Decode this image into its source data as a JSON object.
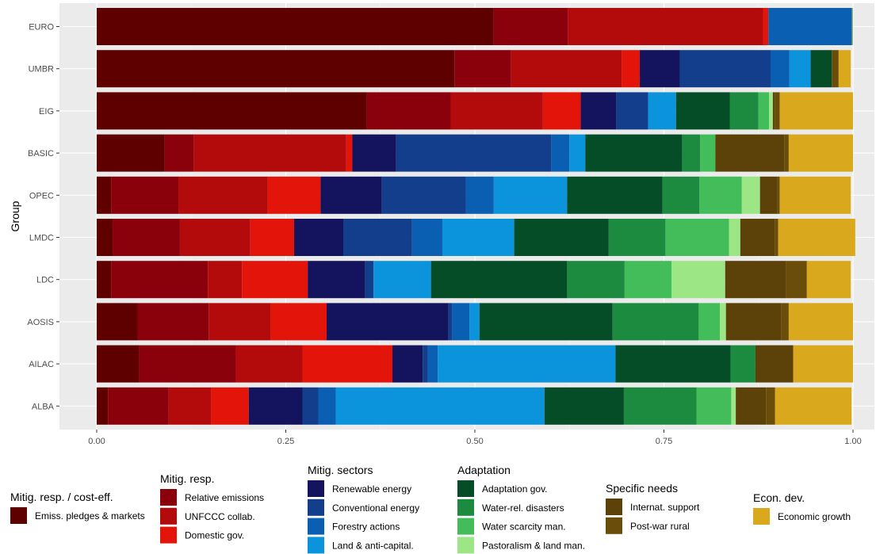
{
  "chart_data": {
    "type": "bar",
    "orientation": "horizontal",
    "stacked": true,
    "ylabel": "Group",
    "xlim": [
      0,
      1
    ],
    "xticks": [
      "0.00",
      "0.25",
      "0.50",
      "0.75",
      "1.00"
    ],
    "grid": true,
    "legend_position": "bottom",
    "categories": [
      "EURO",
      "UMBR",
      "EIG",
      "BASIC",
      "OPEC",
      "LMDC",
      "LDC",
      "AOSIS",
      "AILAC",
      "ALBA"
    ],
    "series": [
      {
        "name": "Emiss. pledges & markets",
        "color": "#5e0000",
        "values": [
          0.525,
          0.473,
          0.357,
          0.09,
          0.019,
          0.021,
          0.019,
          0.054,
          0.056,
          0.015
        ]
      },
      {
        "name": "Relative emissions",
        "color": "#8a000b",
        "values": [
          0.098,
          0.075,
          0.111,
          0.038,
          0.089,
          0.089,
          0.128,
          0.094,
          0.128,
          0.08
        ]
      },
      {
        "name": "UNFCCC collab.",
        "color": "#b30a0c",
        "values": [
          0.258,
          0.146,
          0.122,
          0.202,
          0.118,
          0.093,
          0.045,
          0.082,
          0.088,
          0.056
        ]
      },
      {
        "name": "Domestic gov.",
        "color": "#e3150a",
        "values": [
          0.007,
          0.024,
          0.05,
          0.008,
          0.07,
          0.058,
          0.087,
          0.074,
          0.119,
          0.05
        ]
      },
      {
        "name": "Renewable energy",
        "color": "#14145e",
        "values": [
          0.0,
          0.053,
          0.047,
          0.058,
          0.081,
          0.065,
          0.076,
          0.161,
          0.04,
          0.071
        ]
      },
      {
        "name": "Conventional energy",
        "color": "#123e8c",
        "values": [
          0.0,
          0.12,
          0.042,
          0.205,
          0.111,
          0.091,
          0.011,
          0.005,
          0.007,
          0.021
        ]
      },
      {
        "name": "Forestry actions",
        "color": "#0a5fb3",
        "values": [
          0.11,
          0.025,
          0.0,
          0.024,
          0.037,
          0.04,
          0.0,
          0.023,
          0.013,
          0.023
        ]
      },
      {
        "name": "Land & anti-capital.",
        "color": "#0b93dc",
        "values": [
          0.001,
          0.028,
          0.037,
          0.021,
          0.097,
          0.095,
          0.076,
          0.013,
          0.235,
          0.276
        ]
      },
      {
        "name": "Adaptation gov.",
        "color": "#054d26",
        "values": [
          0.0,
          0.028,
          0.071,
          0.128,
          0.126,
          0.125,
          0.18,
          0.176,
          0.152,
          0.105
        ]
      },
      {
        "name": "Water-rel. disasters",
        "color": "#1c8a3f",
        "values": [
          0.0,
          0.0,
          0.038,
          0.024,
          0.049,
          0.075,
          0.076,
          0.114,
          0.033,
          0.096
        ]
      },
      {
        "name": "Water scarcity man.",
        "color": "#43bd59",
        "values": [
          0.0,
          0.0,
          0.014,
          0.02,
          0.056,
          0.084,
          0.062,
          0.028,
          0.0,
          0.046
        ]
      },
      {
        "name": "Pastoralism & land man.",
        "color": "#9ce686",
        "values": [
          0.0,
          0.0,
          0.005,
          0.0,
          0.024,
          0.015,
          0.071,
          0.008,
          0.0,
          0.006
        ]
      },
      {
        "name": "Internat. support",
        "color": "#5c4209",
        "values": [
          0.0,
          0.0,
          0.003,
          0.091,
          0.023,
          0.046,
          0.08,
          0.073,
          0.05,
          0.04
        ]
      },
      {
        "name": "Post-war rural",
        "color": "#6b4d0a",
        "values": [
          0.0,
          0.009,
          0.006,
          0.006,
          0.003,
          0.004,
          0.028,
          0.01,
          0.0,
          0.012
        ]
      },
      {
        "name": "Economic growth",
        "color": "#d9a81c",
        "values": [
          0.001,
          0.016,
          0.097,
          0.085,
          0.094,
          0.102,
          0.058,
          0.085,
          0.079,
          0.101
        ]
      }
    ],
    "legend_groups": [
      {
        "title": "Mitig. resp. / cost-eff.",
        "series": [
          0
        ]
      },
      {
        "title": "Mitig. resp.",
        "series": [
          1,
          2,
          3
        ]
      },
      {
        "title": "Mitig. sectors",
        "series": [
          4,
          5,
          6,
          7
        ]
      },
      {
        "title": "Adaptation",
        "series": [
          8,
          9,
          10,
          11
        ]
      },
      {
        "title": "Specific needs",
        "series": [
          12,
          13
        ]
      },
      {
        "title": "Econ. dev.",
        "series": [
          14
        ]
      }
    ]
  }
}
